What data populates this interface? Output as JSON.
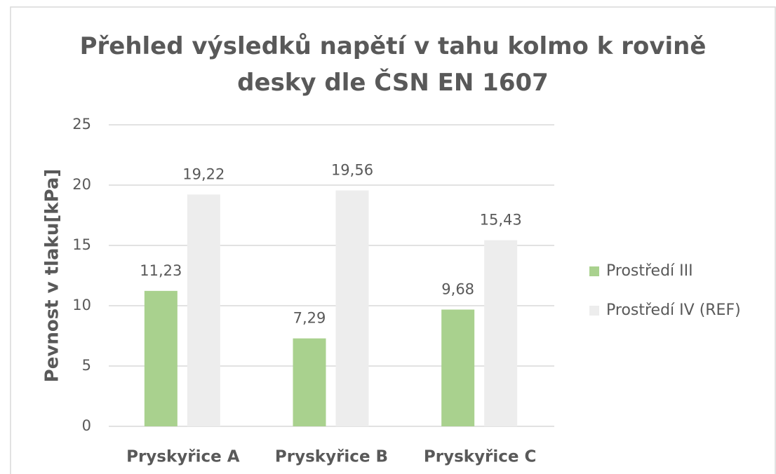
{
  "chart_data": {
    "type": "bar",
    "title": "Přehled výsledků napětí v tahu kolmo k rovině desky dle ČSN EN 1607",
    "y_label": "Pevnost v tlaku[kPa]",
    "categories": [
      "Pryskyřice A",
      "Pryskyřice B",
      "Pryskyřice C"
    ],
    "series": [
      {
        "name": "Prostředí III",
        "color": "#a9d18e",
        "values": [
          11.23,
          7.29,
          9.68
        ],
        "value_labels": [
          "11,23",
          "7,29",
          "9,68"
        ]
      },
      {
        "name": "Prostředí IV (REF)",
        "color": "#ededed",
        "values": [
          19.22,
          19.56,
          15.43
        ],
        "value_labels": [
          "19,22",
          "19,56",
          "15,43"
        ]
      }
    ],
    "ylim": [
      0,
      25
    ],
    "yticks": [
      0,
      5,
      10,
      15,
      20,
      25
    ],
    "grid": true,
    "legend": "right"
  }
}
